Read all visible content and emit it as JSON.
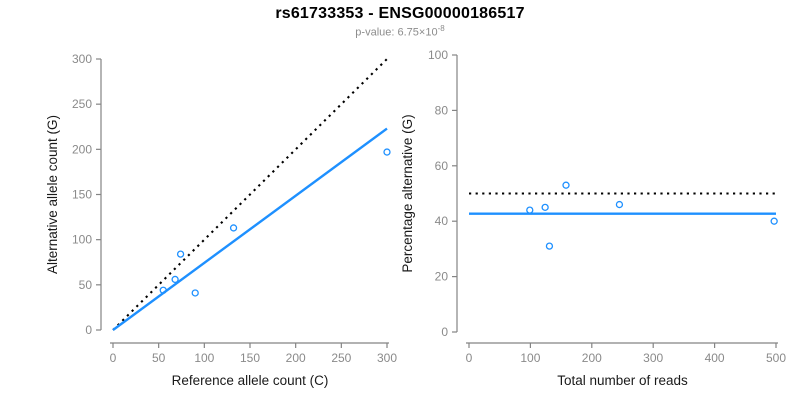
{
  "title": "rs61733353 - ENSG00000186517",
  "subtitle": {
    "prefix": "p-value: 6.75×10",
    "exponent": "-8"
  },
  "colors": {
    "accent_blue": "#1E90FF",
    "line_black": "#000000",
    "tick_gray": "#8a8a8a",
    "axis_gray": "#848484",
    "subtitle_gray": "#8c8c8c",
    "label_black": "#1a1a1a",
    "background": "#ffffff"
  },
  "chart_data": [
    {
      "type": "scatter",
      "name": "allele-counts",
      "xlabel": "Reference allele count (C)",
      "ylabel": "Alternative allele count (G)",
      "xlim": [
        0,
        300
      ],
      "ylim": [
        0,
        300
      ],
      "xticks": [
        0,
        50,
        100,
        150,
        200,
        250,
        300
      ],
      "yticks": [
        0,
        50,
        100,
        150,
        200,
        250,
        300
      ],
      "grid": false,
      "legend": "none",
      "point_color": "#1E90FF",
      "points": [
        [
          55,
          44
        ],
        [
          68,
          56
        ],
        [
          74,
          84
        ],
        [
          90,
          41
        ],
        [
          132,
          113
        ],
        [
          300,
          197
        ]
      ],
      "lines": [
        {
          "name": "identity",
          "style": "dotted",
          "color": "#000000",
          "x1": 0,
          "y1": 0,
          "x2": 300,
          "y2": 300
        },
        {
          "name": "fit",
          "style": "solid",
          "color": "#1E90FF",
          "x1": 0,
          "y1": 0,
          "x2": 300,
          "y2": 223
        }
      ]
    },
    {
      "type": "scatter",
      "name": "percentage-vs-reads",
      "xlabel": "Total number of reads",
      "ylabel": "Percentage alternative (G)",
      "xlim": [
        0,
        500
      ],
      "ylim": [
        0,
        100
      ],
      "xticks": [
        0,
        100,
        200,
        300,
        400,
        500
      ],
      "yticks": [
        0,
        20,
        40,
        60,
        80,
        100
      ],
      "grid": false,
      "legend": "none",
      "point_color": "#1E90FF",
      "points": [
        [
          99,
          44
        ],
        [
          124,
          45
        ],
        [
          131,
          31
        ],
        [
          158,
          53
        ],
        [
          245,
          46
        ],
        [
          497,
          40
        ]
      ],
      "lines": [
        {
          "name": "expected-50-percent",
          "style": "dotted",
          "color": "#000000",
          "y": 50
        },
        {
          "name": "mean-percentage",
          "style": "solid",
          "color": "#1E90FF",
          "y": 42.7
        }
      ]
    }
  ]
}
